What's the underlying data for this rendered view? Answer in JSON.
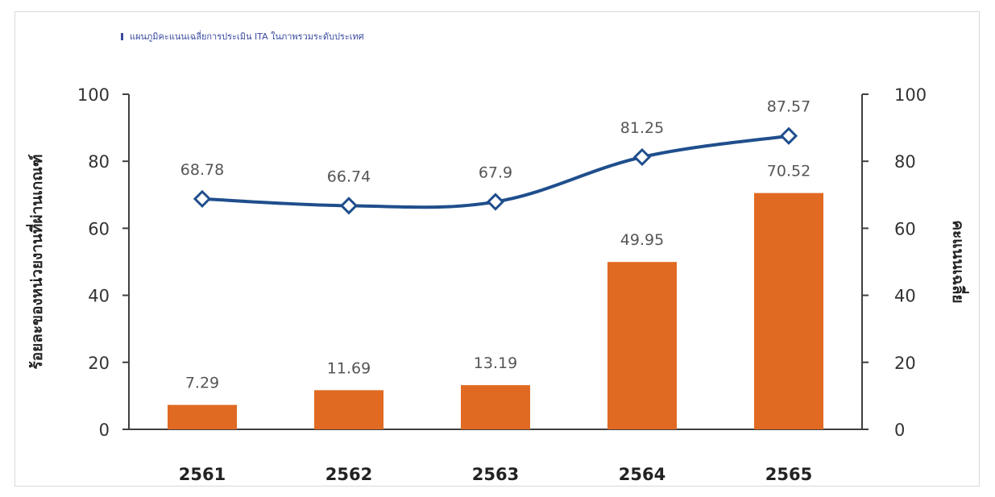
{
  "legend_text": "แผนภูมิคะแนนเฉลี่ยการประเมิน ITA ในภาพรวมระดับประเทศ",
  "colors": {
    "bar": "#e06a22",
    "line": "#1f4e8c",
    "marker_fill": "#ffffff"
  },
  "chart_data": {
    "type": "bar",
    "categories": [
      "2561",
      "2562",
      "2563",
      "2564",
      "2565"
    ],
    "series": [
      {
        "type": "bar",
        "axis": "left",
        "values": [
          7.29,
          11.69,
          13.19,
          49.95,
          70.52
        ]
      },
      {
        "type": "line",
        "axis": "right",
        "values": [
          68.78,
          66.74,
          67.9,
          81.25,
          87.57
        ]
      }
    ],
    "ylabel": "ร้อยละของหน่วยงานที่ผ่านเกณฑ์",
    "y2label": "คะแนนเฉลี่ย",
    "ylim": [
      0,
      100
    ],
    "y2lim": [
      0,
      100
    ],
    "yticks": [
      0,
      20,
      40,
      60,
      80,
      100
    ],
    "y2ticks": [
      0,
      20,
      40,
      60,
      80,
      100
    ],
    "bar_labels": [
      "7.29",
      "11.69",
      "13.19",
      "49.95",
      "70.52"
    ],
    "line_labels": [
      "68.78",
      "66.74",
      "67.9",
      "81.25",
      "87.57"
    ],
    "grid": false
  }
}
